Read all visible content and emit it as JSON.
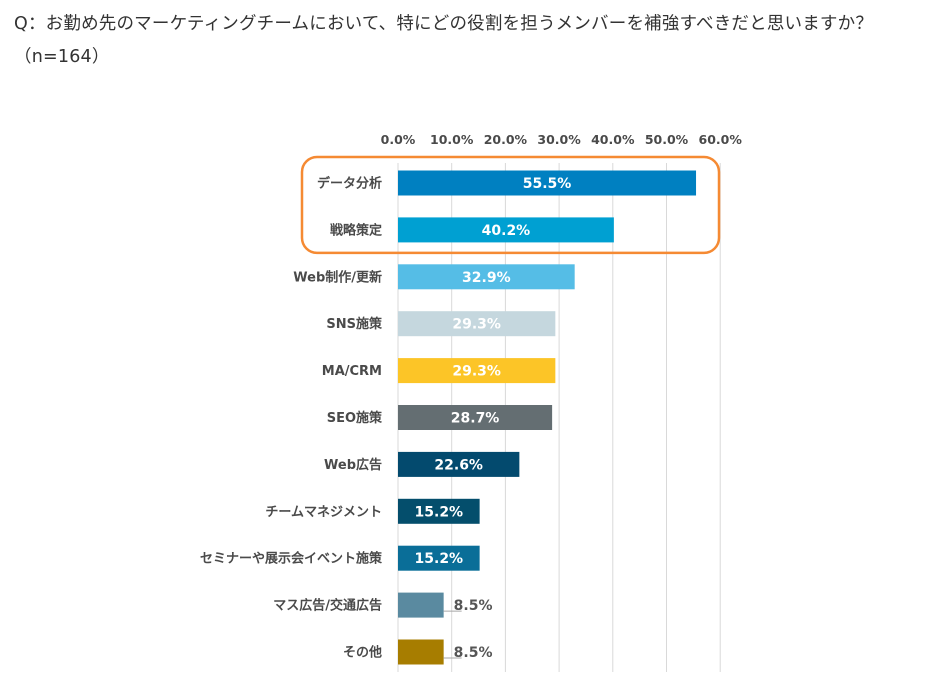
{
  "question": "Q：お勤め先のマーケティングチームにおいて、特にどの役割を担うメンバーを補強すべきだと思いますか？（n=164）",
  "chart_data": {
    "type": "bar",
    "orientation": "horizontal",
    "title": "",
    "xlim": [
      0,
      60
    ],
    "tick_labels": [
      "0.0%",
      "10.0%",
      "20.0%",
      "30.0%",
      "40.0%",
      "50.0%",
      "60.0%"
    ],
    "categories": [
      "データ分析",
      "戦略策定",
      "Web制作/更新",
      "SNS施策",
      "MA/CRM",
      "SEO施策",
      "Web広告",
      "チームマネジメント",
      "セミナーや展示会イベント施策",
      "マス広告/交通広告",
      "その他"
    ],
    "values": [
      55.5,
      40.2,
      32.9,
      29.3,
      29.3,
      28.7,
      22.6,
      15.2,
      15.2,
      8.5,
      8.5
    ],
    "value_labels": [
      "55.5%",
      "40.2%",
      "32.9%",
      "29.3%",
      "29.3%",
      "28.7%",
      "22.6%",
      "15.2%",
      "15.2%",
      "8.5%",
      "8.5%"
    ],
    "bar_colors": [
      "#0080c1",
      "#00a0d2",
      "#55bde6",
      "#c5d7de",
      "#fcc527",
      "#646e72",
      "#034a6e",
      "#044e6c",
      "#0a6e98",
      "#5a8aa0",
      "#a77d00"
    ],
    "label_colors": [
      "#ffffff",
      "#ffffff",
      "#ffffff",
      "#ffffff",
      "#ffffff",
      "#ffffff",
      "#ffffff",
      "#ffffff",
      "#ffffff",
      "#555555",
      "#555555"
    ],
    "label_outside": [
      false,
      false,
      false,
      false,
      false,
      false,
      false,
      false,
      false,
      true,
      true
    ],
    "highlight": {
      "items": [
        "データ分析",
        "戦略策定"
      ],
      "color": "#f58a33"
    },
    "gridline_color": "#d9d9d9",
    "grid": true
  }
}
